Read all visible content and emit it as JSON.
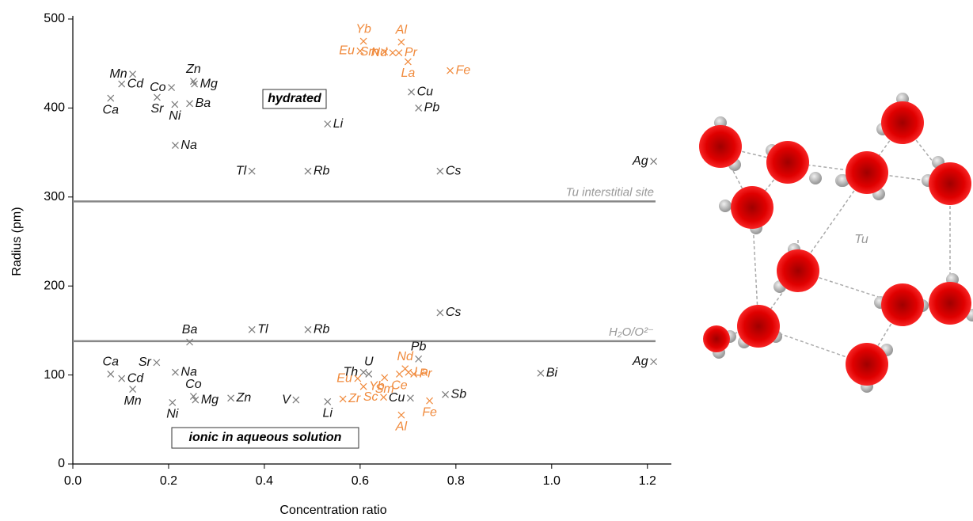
{
  "chart_data": {
    "type": "scatter",
    "x_label": "Concentration ratio",
    "y_label": "Radius (pm)",
    "xlim": [
      0,
      1.25
    ],
    "ylim": [
      0,
      500
    ],
    "xticks": [
      {
        "value": 0,
        "label": "0.0"
      },
      0.2,
      0.4,
      0.6,
      0.8,
      {
        "value": 1,
        "label": "1.0"
      },
      1.2
    ],
    "yticks": [
      0,
      100,
      200,
      300,
      400,
      500
    ],
    "annotations": [
      "hydrated",
      "ionic in aqueous solution"
    ],
    "hlines": [
      {
        "value": 295,
        "label": "Tu interstitial site"
      },
      {
        "value": 138,
        "label": "H₂O/O²⁻"
      }
    ],
    "series": [
      {
        "color": "#7a7a7a",
        "label_color": "#111111",
        "labels": [
          "Mn",
          "Cd",
          "Ca",
          "Co",
          "Sr",
          "Ni",
          "Zn",
          "Mg",
          "Ba",
          "Na",
          "Tl",
          "Rb",
          "Li",
          "Cu",
          "Pb",
          "Cs",
          "Ag"
        ],
        "x": [
          0.125,
          0.102,
          0.079,
          0.206,
          0.176,
          0.213,
          0.252,
          0.254,
          0.244,
          0.214,
          0.374,
          0.491,
          0.532,
          0.707,
          0.722,
          0.767,
          1.213
        ],
        "values": [
          438,
          427,
          411,
          423,
          412,
          404,
          430,
          427,
          405,
          358,
          329,
          329,
          382,
          418,
          400,
          329,
          340
        ]
      },
      {
        "color": "#f08a3c",
        "label_color": "#f08a3c",
        "labels": [
          "Eu",
          "Yb",
          "Sm",
          "Al",
          "Pr",
          "Nd",
          "La",
          "Fe"
        ],
        "x": [
          0.6,
          0.607,
          0.651,
          0.686,
          0.681,
          0.668,
          0.7,
          0.788
        ],
        "values": [
          464,
          475,
          463,
          474,
          462,
          462,
          452,
          442
        ]
      },
      {
        "color": "#7a7a7a",
        "label_color": "#111111",
        "labels": [
          "Ca",
          "Cd",
          "Mn",
          "Sr",
          "Na",
          "Co",
          "Mg",
          "Ni",
          "Ba",
          "Zn",
          "V",
          "Tl",
          "Rb",
          "Li",
          "Th",
          "U",
          "Cu",
          "Pb",
          "Cs",
          "Sb",
          "Bi",
          "Ag"
        ],
        "x": [
          0.079,
          0.102,
          0.125,
          0.175,
          0.214,
          0.252,
          0.256,
          0.208,
          0.244,
          0.33,
          0.466,
          0.374,
          0.491,
          0.532,
          0.607,
          0.618,
          0.705,
          0.722,
          0.767,
          0.778,
          0.977,
          1.213
        ],
        "values": [
          101,
          96,
          84,
          114,
          103,
          76,
          72,
          69,
          137,
          74,
          72,
          151,
          151,
          70,
          103,
          101,
          74,
          118,
          170,
          78,
          102,
          115
        ]
      },
      {
        "color": "#f08a3c",
        "label_color": "#f08a3c",
        "labels": [
          "Eu",
          "Yb",
          "Sm",
          "Nd",
          "La",
          "Pr",
          "Ce",
          "Sc",
          "Zr",
          "Al",
          "Fe"
        ],
        "x": [
          0.595,
          0.607,
          0.651,
          0.694,
          0.701,
          0.712,
          0.682,
          0.649,
          0.564,
          0.686,
          0.745
        ],
        "values": [
          96,
          87,
          97,
          107,
          103,
          101,
          101,
          75,
          73,
          55,
          71
        ]
      }
    ]
  },
  "diagram": {
    "label": "Tu"
  }
}
